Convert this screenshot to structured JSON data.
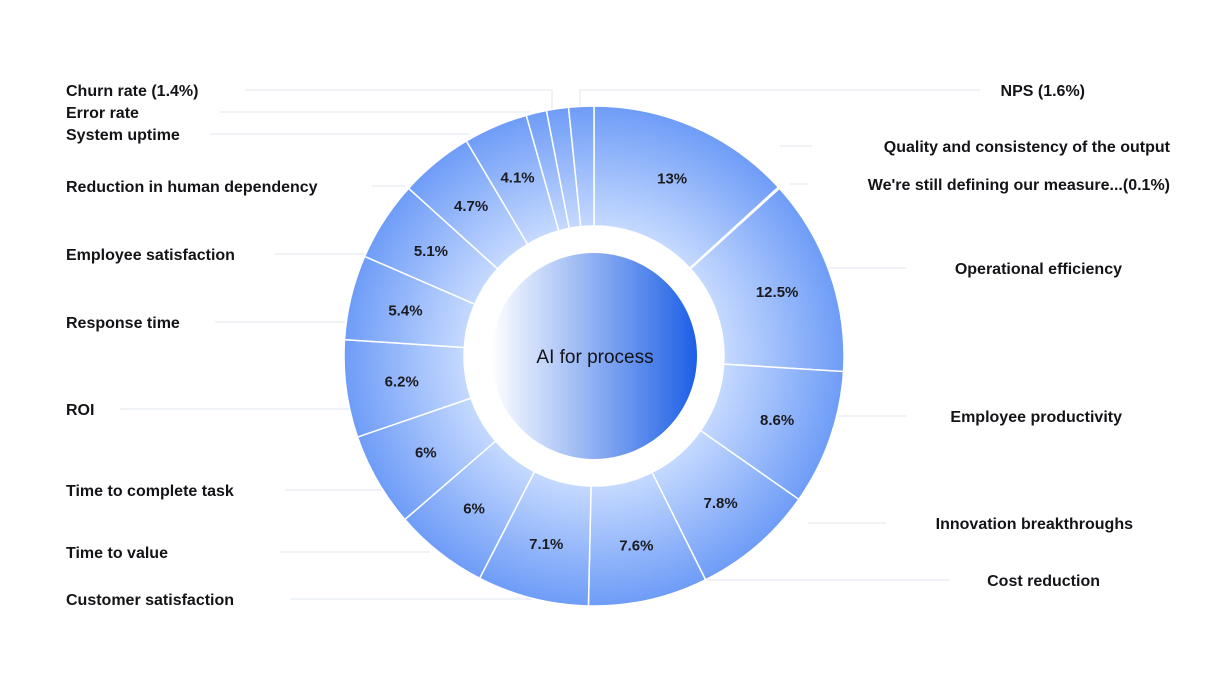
{
  "chart_data": {
    "type": "pie",
    "title": "",
    "center_label": "AI for process",
    "slices": [
      {
        "label": "Quality and consistency of the output",
        "value": 13,
        "display": "13%"
      },
      {
        "label": "We're still defining our measure...(0.1%)",
        "value": 0.1,
        "display": ""
      },
      {
        "label": "Operational efficiency",
        "value": 12.5,
        "display": "12.5%"
      },
      {
        "label": "Employee productivity",
        "value": 8.6,
        "display": "8.6%"
      },
      {
        "label": "Innovation breakthroughs",
        "value": 7.8,
        "display": "7.8%"
      },
      {
        "label": "Cost reduction",
        "value": 7.6,
        "display": "7.6%"
      },
      {
        "label": "Customer satisfaction",
        "value": 7.1,
        "display": "7.1%"
      },
      {
        "label": "Time to value",
        "value": 6,
        "display": "6%"
      },
      {
        "label": "Time to complete task",
        "value": 6,
        "display": "6%"
      },
      {
        "label": "ROI",
        "value": 6.2,
        "display": "6.2%"
      },
      {
        "label": "Response time",
        "value": 5.4,
        "display": "5.4%"
      },
      {
        "label": "Employee satisfaction",
        "value": 5.1,
        "display": "5.1%"
      },
      {
        "label": "Reduction in human dependency",
        "value": 4.7,
        "display": "4.7%"
      },
      {
        "label": "System uptime",
        "value": 4.1,
        "display": "4.1%"
      },
      {
        "label": "Error rate",
        "value": 1.3,
        "display": ""
      },
      {
        "label": "Churn rate (1.4%)",
        "value": 1.4,
        "display": ""
      },
      {
        "label": "NPS (1.6%)",
        "value": 1.6,
        "display": ""
      }
    ],
    "colors": {
      "segment_light": "#c9dcff",
      "segment_dark": "#6e9cf7",
      "segment_border": "#ffffff",
      "center_light": "#ffffff",
      "center_dark": "#1c5fe6",
      "leader": "#dfe4ec",
      "text": "#141418"
    }
  }
}
